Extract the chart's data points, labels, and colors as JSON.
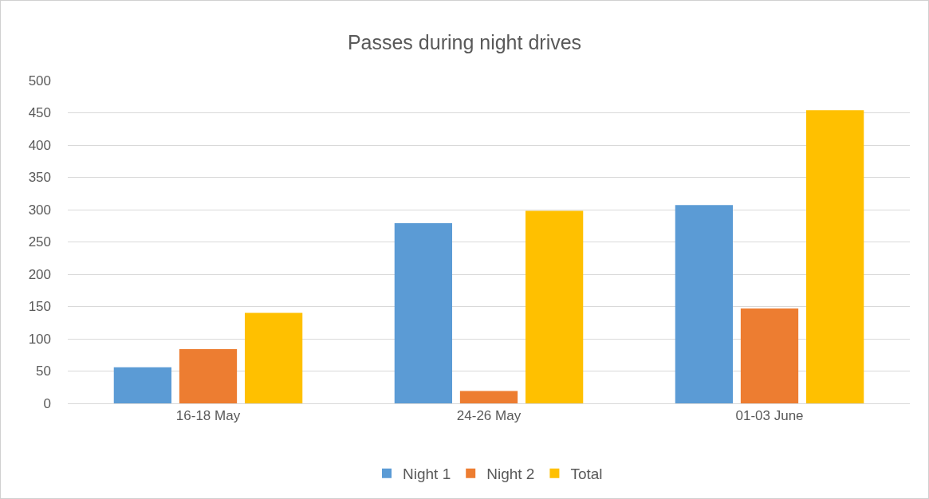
{
  "chart_data": {
    "type": "bar",
    "title": "Passes during night drives",
    "categories": [
      "16-18 May",
      "24-26 May",
      "01-03 June"
    ],
    "series": [
      {
        "name": "Night 1",
        "color": "#5b9bd5",
        "values": [
          56,
          279,
          307
        ]
      },
      {
        "name": "Night 2",
        "color": "#ed7d31",
        "values": [
          84,
          19,
          147
        ]
      },
      {
        "name": "Total",
        "color": "#ffc000",
        "values": [
          140,
          298,
          454
        ]
      }
    ],
    "ylim": [
      0,
      500
    ],
    "yticks": [
      0,
      50,
      100,
      150,
      200,
      250,
      300,
      350,
      400,
      450,
      500
    ],
    "grid": "y",
    "legend": "bottom"
  }
}
